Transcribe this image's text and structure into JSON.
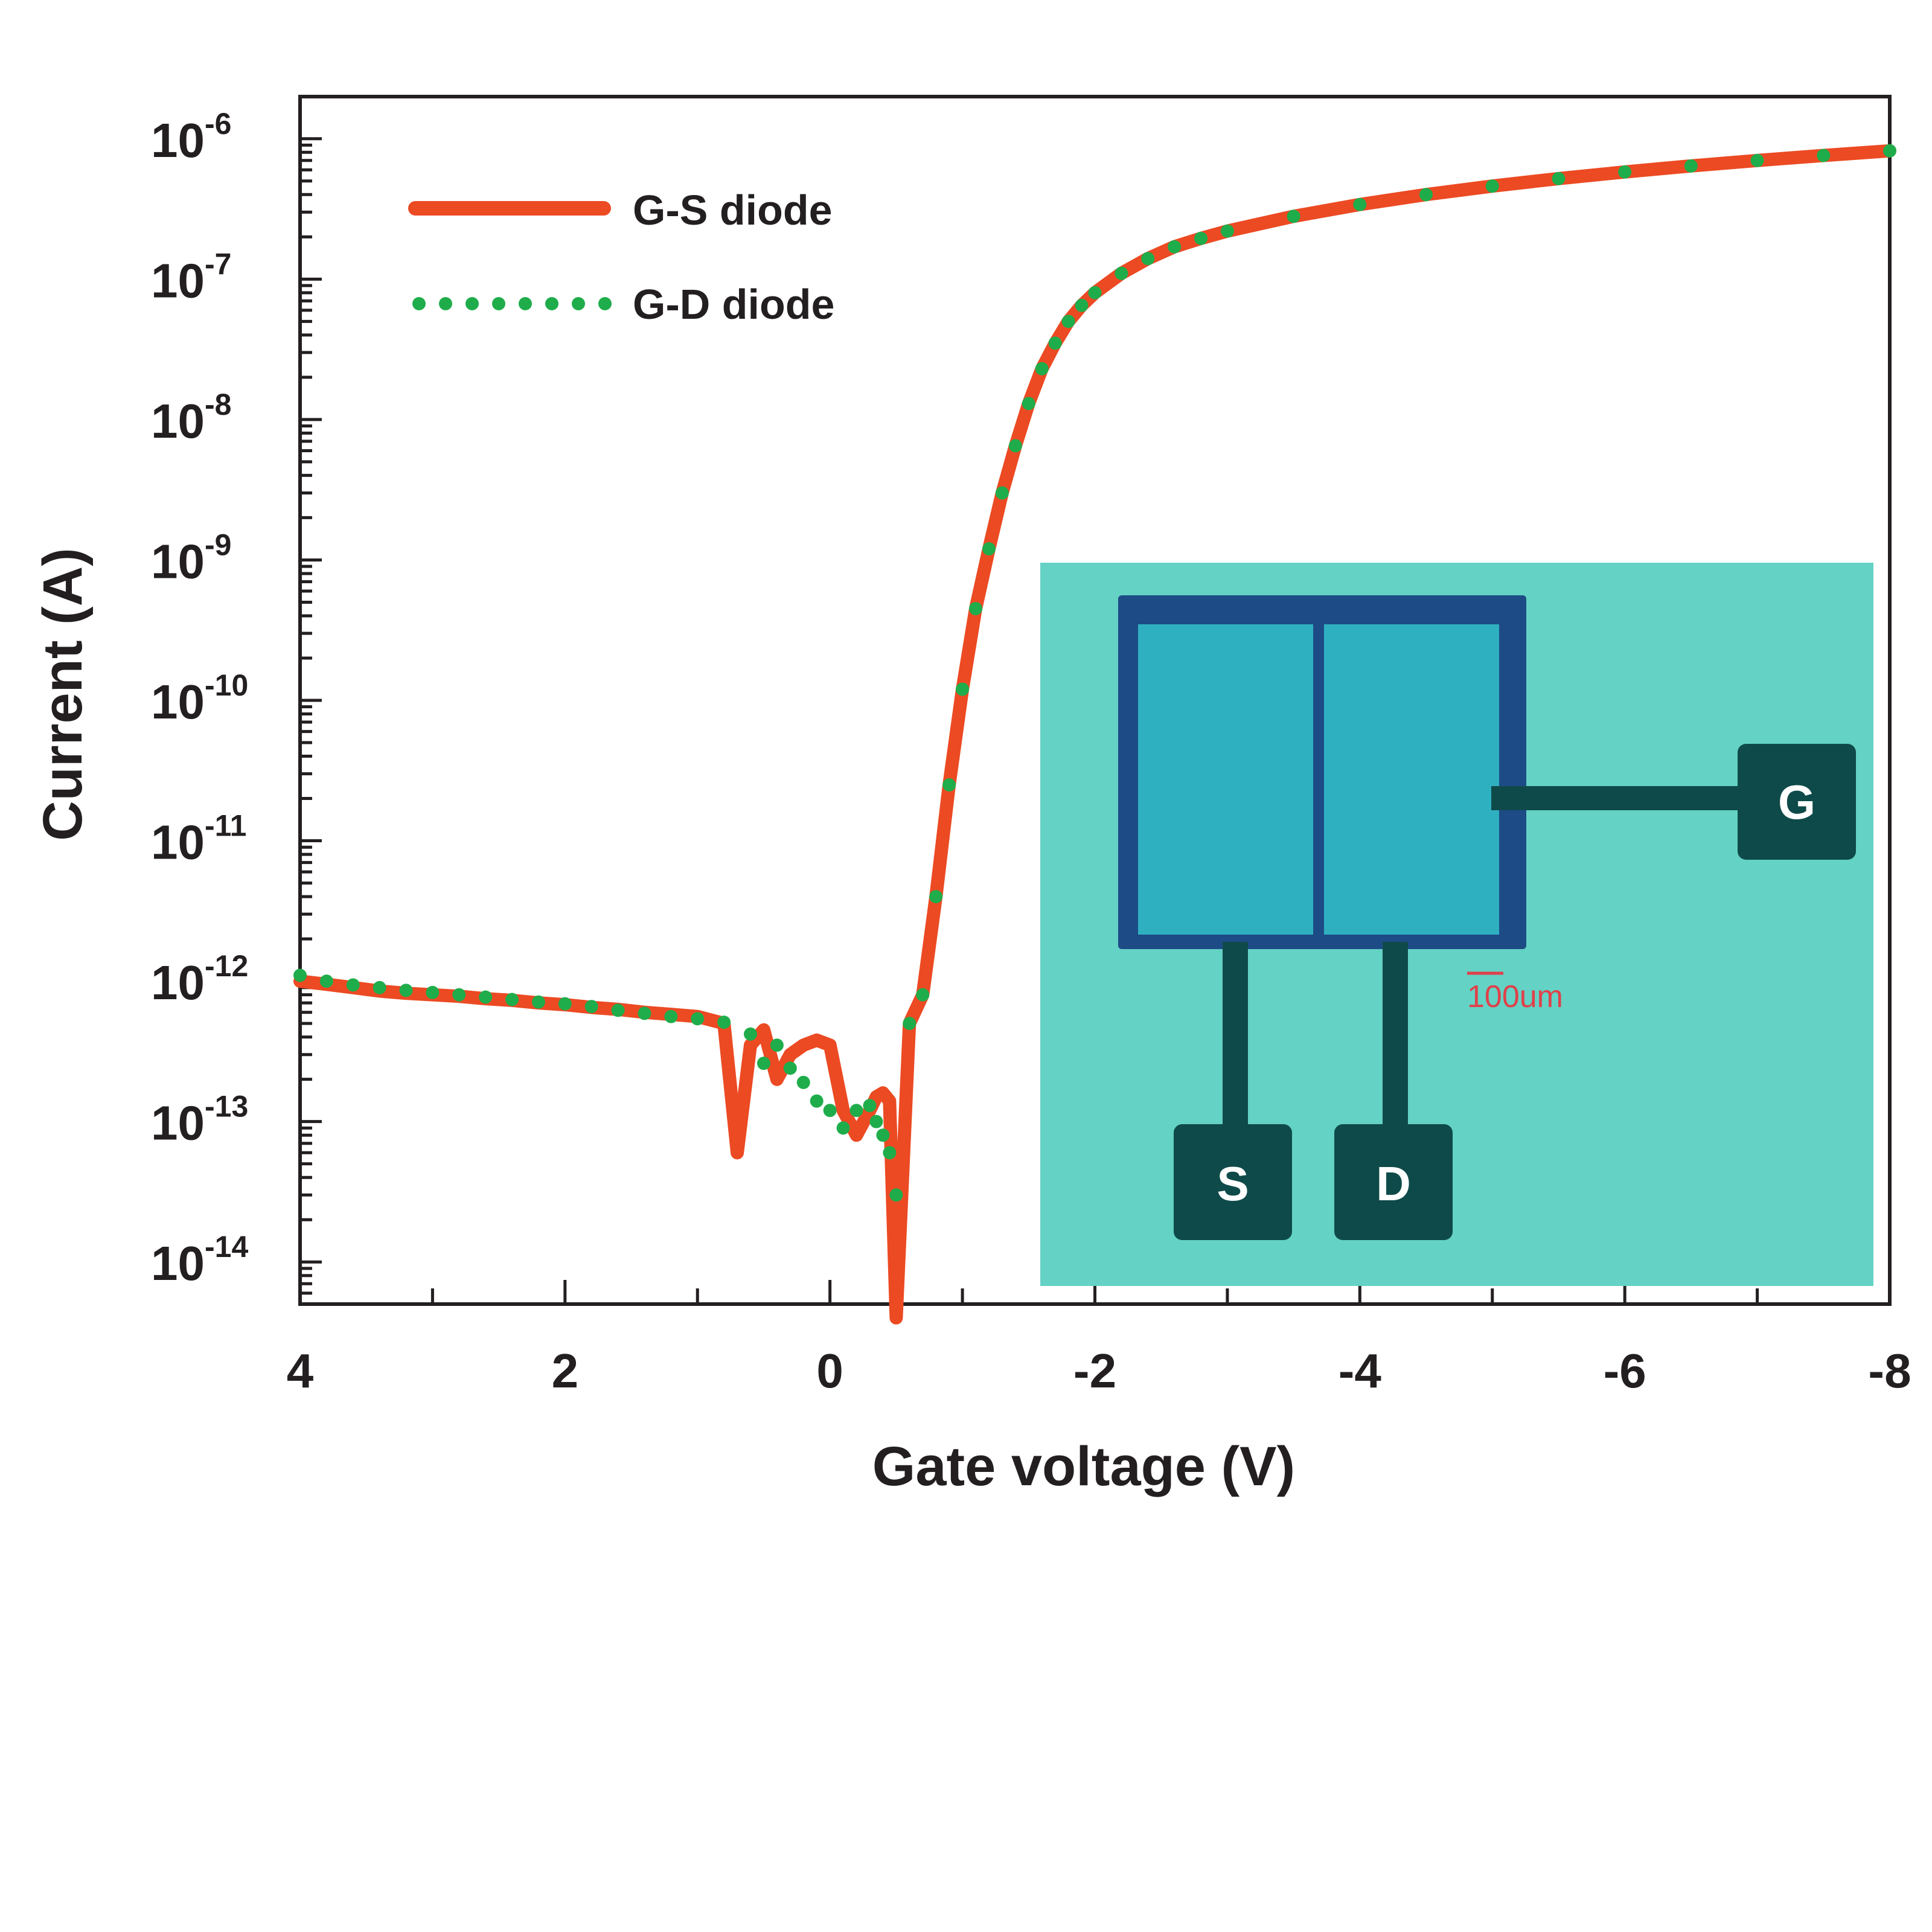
{
  "chart_data": {
    "type": "line",
    "title": "",
    "xlabel": "Gate voltage (V)",
    "ylabel": "Current (A)",
    "xlim": [
      4,
      -8
    ],
    "ylim_log10": [
      -14.3,
      -5.7
    ],
    "y_scale": "log",
    "x_ticks": [
      4,
      2,
      0,
      -2,
      -4,
      -6,
      -8
    ],
    "x_tick_labels": [
      "4",
      "2",
      "0",
      "-2",
      "-4",
      "-6",
      "-8"
    ],
    "y_ticks": [
      {
        "base": "10",
        "exp": "-6",
        "log": -6
      },
      {
        "base": "10",
        "exp": "-7",
        "log": -7
      },
      {
        "base": "10",
        "exp": "-8",
        "log": -8
      },
      {
        "base": "10",
        "exp": "-9",
        "log": -9
      },
      {
        "base": "10",
        "exp": "-10",
        "log": -10
      },
      {
        "base": "10",
        "exp": "-11",
        "log": -11
      },
      {
        "base": "10",
        "exp": "-12",
        "log": -12
      },
      {
        "base": "10",
        "exp": "-13",
        "log": -13
      },
      {
        "base": "10",
        "exp": "-14",
        "log": -14
      }
    ],
    "legend_position": "top-left",
    "series": [
      {
        "name": "G-S diode",
        "style": "solid",
        "color": "#ec4a23",
        "x": [
          4.0,
          3.8,
          3.6,
          3.4,
          3.2,
          3.0,
          2.8,
          2.6,
          2.4,
          2.2,
          2.0,
          1.8,
          1.6,
          1.4,
          1.2,
          1.0,
          0.8,
          0.7,
          0.6,
          0.5,
          0.4,
          0.3,
          0.2,
          0.1,
          0.0,
          -0.1,
          -0.2,
          -0.3,
          -0.35,
          -0.4,
          -0.45,
          -0.5,
          -0.6,
          -0.7,
          -0.8,
          -0.9,
          -1.0,
          -1.1,
          -1.2,
          -1.3,
          -1.4,
          -1.5,
          -1.6,
          -1.7,
          -1.8,
          -1.9,
          -2.0,
          -2.2,
          -2.4,
          -2.6,
          -2.8,
          -3.0,
          -3.5,
          -4.0,
          -4.5,
          -5.0,
          -5.5,
          -6.0,
          -6.5,
          -7.0,
          -7.5,
          -8.0
        ],
        "y": [
          1e-12,
          9.5e-13,
          9e-13,
          8.5e-13,
          8.2e-13,
          8e-13,
          7.8e-13,
          7.5e-13,
          7.3e-13,
          7e-13,
          6.8e-13,
          6.5e-13,
          6.3e-13,
          6e-13,
          5.8e-13,
          5.6e-13,
          5e-13,
          6e-14,
          3.5e-13,
          4.5e-13,
          2e-13,
          3e-13,
          3.5e-13,
          3.8e-13,
          3.5e-13,
          1.2e-13,
          8e-14,
          1.2e-13,
          1.5e-13,
          1.6e-13,
          1.4e-13,
          4e-15,
          5e-13,
          8e-13,
          4e-12,
          2.5e-11,
          1.2e-10,
          4.5e-10,
          1.2e-09,
          3e-09,
          6.5e-09,
          1.3e-08,
          2.3e-08,
          3.5e-08,
          5e-08,
          6.5e-08,
          8e-08,
          1.1e-07,
          1.4e-07,
          1.7e-07,
          1.95e-07,
          2.2e-07,
          2.8e-07,
          3.4e-07,
          4e-07,
          4.6e-07,
          5.2e-07,
          5.8e-07,
          6.4e-07,
          7e-07,
          7.6e-07,
          8.2e-07
        ]
      },
      {
        "name": "G-D diode",
        "style": "dotted",
        "color": "#1fad4b",
        "x": [
          4.0,
          3.8,
          3.6,
          3.4,
          3.2,
          3.0,
          2.8,
          2.6,
          2.4,
          2.2,
          2.0,
          1.8,
          1.6,
          1.4,
          1.2,
          1.0,
          0.8,
          0.6,
          0.5,
          0.4,
          0.3,
          0.2,
          0.1,
          0.0,
          -0.1,
          -0.2,
          -0.3,
          -0.35,
          -0.4,
          -0.45,
          -0.5,
          -0.6,
          -0.7,
          -0.8,
          -0.9,
          -1.0,
          -1.1,
          -1.2,
          -1.3,
          -1.4,
          -1.5,
          -1.6,
          -1.7,
          -1.8,
          -1.9,
          -2.0,
          -2.2,
          -2.4,
          -2.6,
          -2.8,
          -3.0,
          -3.5,
          -4.0,
          -4.5,
          -5.0,
          -5.5,
          -6.0,
          -6.5,
          -7.0,
          -7.5,
          -8.0
        ],
        "y": [
          1.1e-12,
          1e-12,
          9.4e-13,
          9e-13,
          8.6e-13,
          8.3e-13,
          8e-13,
          7.7e-13,
          7.4e-13,
          7.1e-13,
          6.9e-13,
          6.6e-13,
          6.2e-13,
          5.9e-13,
          5.6e-13,
          5.4e-13,
          5.1e-13,
          4.2e-13,
          2.6e-13,
          3.5e-13,
          2.4e-13,
          1.9e-13,
          1.4e-13,
          1.2e-13,
          9e-14,
          1.2e-13,
          1.3e-13,
          1e-13,
          8e-14,
          6e-14,
          3e-14,
          5e-13,
          8e-13,
          4e-12,
          2.5e-11,
          1.2e-10,
          4.5e-10,
          1.2e-09,
          3e-09,
          6.5e-09,
          1.3e-08,
          2.3e-08,
          3.5e-08,
          5e-08,
          6.5e-08,
          8e-08,
          1.1e-07,
          1.4e-07,
          1.7e-07,
          1.95e-07,
          2.2e-07,
          2.8e-07,
          3.4e-07,
          4e-07,
          4.6e-07,
          5.2e-07,
          5.8e-07,
          6.4e-07,
          7e-07,
          7.6e-07,
          8.2e-07
        ]
      }
    ],
    "inset": {
      "description_labels": [
        "G",
        "S",
        "D"
      ],
      "scale_bar_label": "100um",
      "colors": {
        "background": "#64d2c4",
        "frame": "#1d4b86",
        "channel": "#2fb0c1",
        "pad": "#0f4a4a",
        "scale_bar": "#e0404a"
      }
    }
  }
}
